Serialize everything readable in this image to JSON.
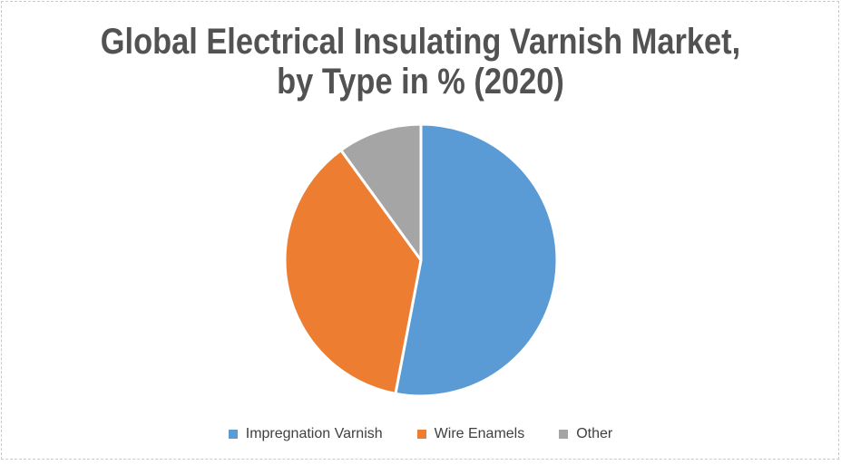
{
  "page": {
    "background_color": "#ffffff",
    "frame_border_color": "#c9c9c9"
  },
  "chart": {
    "title_line1": "Global Electrical Insulating Varnish Market,",
    "title_line2": "by Type in % (2020)",
    "title_color": "#525252",
    "legend_text_color": "#404040"
  },
  "chart_data": {
    "type": "pie",
    "title": "Global Electrical Insulating Varnish Market, by Type in % (2020)",
    "categories": [
      "Impregnation Varnish",
      "Wire Enamels",
      "Other"
    ],
    "values": [
      53,
      37,
      10
    ],
    "colors": [
      "#5B9BD5",
      "#ED7D31",
      "#A5A5A5"
    ],
    "start_angle_deg": 0,
    "direction": "clockwise",
    "slice_border_color": "#ffffff",
    "slice_border_width": 3,
    "legend_position": "bottom"
  }
}
